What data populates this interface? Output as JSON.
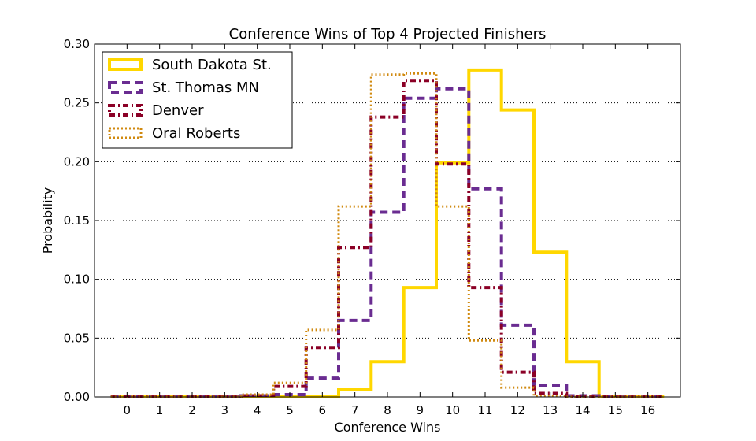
{
  "chart_data": {
    "type": "line",
    "title": "Conference Wins of Top 4 Projected Finishers",
    "xlabel": "Conference Wins",
    "ylabel": "Probability",
    "x": [
      0,
      1,
      2,
      3,
      4,
      5,
      6,
      7,
      8,
      9,
      10,
      11,
      12,
      13,
      14,
      15,
      16
    ],
    "xlim": [
      -1,
      17
    ],
    "ylim": [
      0,
      0.3
    ],
    "yticks": [
      "0.00",
      "0.05",
      "0.10",
      "0.15",
      "0.20",
      "0.25",
      "0.30"
    ],
    "grid": "horizontal dotted",
    "legend_position": "top-left",
    "series": [
      {
        "name": "South Dakota St.",
        "color": "#FFD700",
        "style": "solid",
        "values": [
          0,
          0,
          0,
          0,
          0,
          0,
          0,
          0.006,
          0.03,
          0.093,
          0.199,
          0.278,
          0.244,
          0.123,
          0.03,
          0,
          0
        ]
      },
      {
        "name": "St. Thomas MN",
        "color": "#6A2C91",
        "style": "dashed",
        "values": [
          0,
          0,
          0,
          0,
          0.001,
          0.002,
          0.016,
          0.065,
          0.157,
          0.254,
          0.262,
          0.177,
          0.061,
          0.01,
          0.001,
          0,
          0
        ]
      },
      {
        "name": "Denver",
        "color": "#8B0026",
        "style": "dashdot",
        "values": [
          0,
          0,
          0,
          0,
          0.001,
          0.009,
          0.042,
          0.127,
          0.238,
          0.269,
          0.198,
          0.093,
          0.021,
          0.003,
          0,
          0,
          0
        ]
      },
      {
        "name": "Oral Roberts",
        "color": "#D08A10",
        "style": "dotted",
        "values": [
          0,
          0,
          0,
          0,
          0.002,
          0.012,
          0.057,
          0.162,
          0.274,
          0.275,
          0.162,
          0.048,
          0.008,
          0.001,
          0,
          0,
          0
        ]
      }
    ]
  }
}
